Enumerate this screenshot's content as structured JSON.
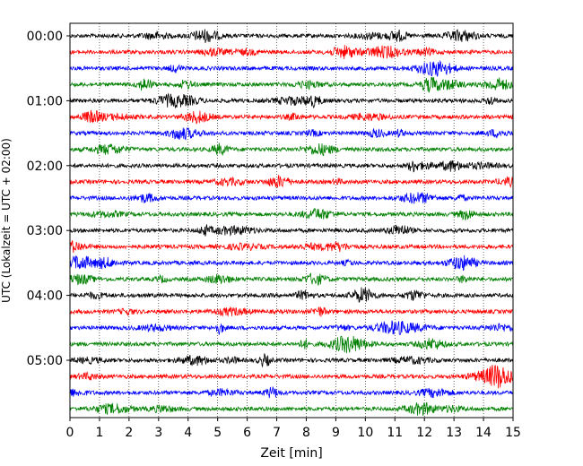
{
  "chart_data": {
    "type": "line",
    "subtype": "helicorder-seismogram",
    "title": "",
    "xlabel": "Zeit  [min]",
    "ylabel": "UTC (Lokalzeit = UTC + 02:00)",
    "xlim": [
      0,
      15
    ],
    "x_ticks": [
      0,
      1,
      2,
      3,
      4,
      5,
      6,
      7,
      8,
      9,
      10,
      11,
      12,
      13,
      14,
      15
    ],
    "x_tick_labels": [
      "0",
      "1",
      "2",
      "3",
      "4",
      "5",
      "6",
      "7",
      "8",
      "9",
      "10",
      "11",
      "12",
      "13",
      "14",
      "15"
    ],
    "y_tick_labels": [
      "00:00",
      "01:00",
      "02:00",
      "03:00",
      "04:00",
      "05:00"
    ],
    "trace_interval_minutes": 15,
    "trace_count": 24,
    "grid": "vertical-dotted",
    "legend": "none",
    "color_cycle": [
      "#000000",
      "#ff0000",
      "#0000ff",
      "#008000"
    ],
    "trace_start_times": [
      "00:00",
      "00:15",
      "00:30",
      "00:45",
      "01:00",
      "01:15",
      "01:30",
      "01:45",
      "02:00",
      "02:15",
      "02:30",
      "02:45",
      "03:00",
      "03:15",
      "03:30",
      "03:45",
      "04:00",
      "04:15",
      "04:30",
      "04:45",
      "05:00",
      "05:15",
      "05:30",
      "05:45"
    ]
  }
}
